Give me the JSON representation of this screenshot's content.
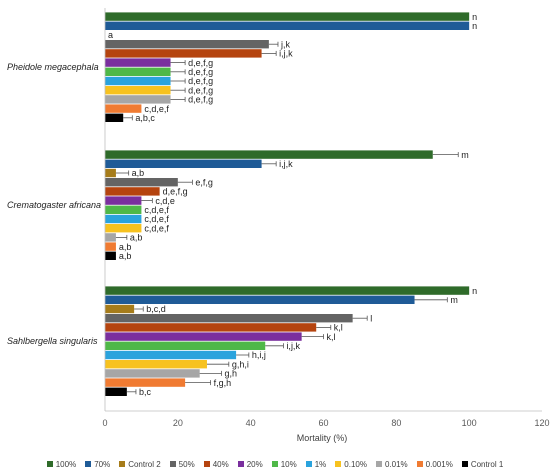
{
  "chart_data": {
    "type": "bar",
    "orientation": "horizontal",
    "title": "",
    "xlabel": "Mortality (%)",
    "ylabel": "",
    "xlim": [
      0,
      120
    ],
    "xticks": [
      "0",
      "20",
      "40",
      "60",
      "80",
      "100",
      "120"
    ],
    "grid": false,
    "legend_position": "bottom",
    "series": [
      {
        "name": "100%",
        "color": "#2f6b2a"
      },
      {
        "name": "70%",
        "color": "#1f5b97"
      },
      {
        "name": "Control 2",
        "color": "#a67c1a"
      },
      {
        "name": "50%",
        "color": "#646464"
      },
      {
        "name": "40%",
        "color": "#b5440f"
      },
      {
        "name": "20%",
        "color": "#7a2f9e"
      },
      {
        "name": "10%",
        "color": "#4fb848"
      },
      {
        "name": "1%",
        "color": "#2aa3dd"
      },
      {
        "name": "0.10%",
        "color": "#f7c21f"
      },
      {
        "name": "0.01%",
        "color": "#a6a6a6"
      },
      {
        "name": "0.001%",
        "color": "#f07b32"
      },
      {
        "name": "Control 1",
        "color": "#000000"
      }
    ],
    "groups": [
      {
        "name": "Pheidole megacephala",
        "bars": [
          {
            "series": "100%",
            "value": 100,
            "error": 0,
            "label": "n"
          },
          {
            "series": "70%",
            "value": 100,
            "error": 0,
            "label": "n"
          },
          {
            "series": "Control 2",
            "value": 0,
            "error": 0,
            "label": "a"
          },
          {
            "series": "50%",
            "value": 45,
            "error": 2.5,
            "label": "j,k"
          },
          {
            "series": "40%",
            "value": 43,
            "error": 4,
            "label": "i,j,k"
          },
          {
            "series": "20%",
            "value": 18,
            "error": 4,
            "label": "d,e,f,g"
          },
          {
            "series": "10%",
            "value": 18,
            "error": 4,
            "label": "d,e,f,g"
          },
          {
            "series": "1%",
            "value": 18,
            "error": 4,
            "label": "d,e,f,g"
          },
          {
            "series": "0.10%",
            "value": 18,
            "error": 4,
            "label": "d,e,f,g"
          },
          {
            "series": "0.01%",
            "value": 18,
            "error": 4,
            "label": "d,e,f,g"
          },
          {
            "series": "0.001%",
            "value": 10,
            "error": 0,
            "label": "c,d,e,f"
          },
          {
            "series": "Control 1",
            "value": 5,
            "error": 2.5,
            "label": "a,b,c"
          }
        ]
      },
      {
        "name": "Crematogaster africana",
        "bars": [
          {
            "series": "100%",
            "value": 90,
            "error": 7,
            "label": "m"
          },
          {
            "series": "70%",
            "value": 43,
            "error": 4,
            "label": "i,j,k"
          },
          {
            "series": "Control 2",
            "value": 3,
            "error": 3.5,
            "label": "a,b"
          },
          {
            "series": "50%",
            "value": 20,
            "error": 4,
            "label": "e,f,g"
          },
          {
            "series": "40%",
            "value": 15,
            "error": 0,
            "label": "d,e,f,g"
          },
          {
            "series": "20%",
            "value": 10,
            "error": 3,
            "label": "c,d,e"
          },
          {
            "series": "10%",
            "value": 10,
            "error": 0,
            "label": "c,d,e,f"
          },
          {
            "series": "1%",
            "value": 10,
            "error": 0,
            "label": "c,d,e,f"
          },
          {
            "series": "0.10%",
            "value": 10,
            "error": 0,
            "label": "c,d,e,f"
          },
          {
            "series": "0.01%",
            "value": 3,
            "error": 3,
            "label": "a,b"
          },
          {
            "series": "0.001%",
            "value": 3,
            "error": 0,
            "label": "a,b"
          },
          {
            "series": "Control 1",
            "value": 3,
            "error": 0,
            "label": "a,b"
          }
        ]
      },
      {
        "name": "Sahlbergella singularis",
        "bars": [
          {
            "series": "100%",
            "value": 100,
            "error": 0,
            "label": "n"
          },
          {
            "series": "70%",
            "value": 85,
            "error": 9,
            "label": "m"
          },
          {
            "series": "Control 2",
            "value": 8,
            "error": 2.5,
            "label": "b,c,d"
          },
          {
            "series": "50%",
            "value": 68,
            "error": 4,
            "label": "l"
          },
          {
            "series": "40%",
            "value": 58,
            "error": 4,
            "label": "k,l"
          },
          {
            "series": "20%",
            "value": 54,
            "error": 6,
            "label": "k,l"
          },
          {
            "series": "10%",
            "value": 44,
            "error": 5,
            "label": "i,j,k"
          },
          {
            "series": "1%",
            "value": 36,
            "error": 3.5,
            "label": "h,i,j"
          },
          {
            "series": "0.10%",
            "value": 28,
            "error": 6,
            "label": "g,h,i"
          },
          {
            "series": "0.01%",
            "value": 26,
            "error": 6,
            "label": "g,h"
          },
          {
            "series": "0.001%",
            "value": 22,
            "error": 7,
            "label": "f,g,h"
          },
          {
            "series": "Control 1",
            "value": 6,
            "error": 2.5,
            "label": "b,c"
          }
        ]
      }
    ]
  }
}
